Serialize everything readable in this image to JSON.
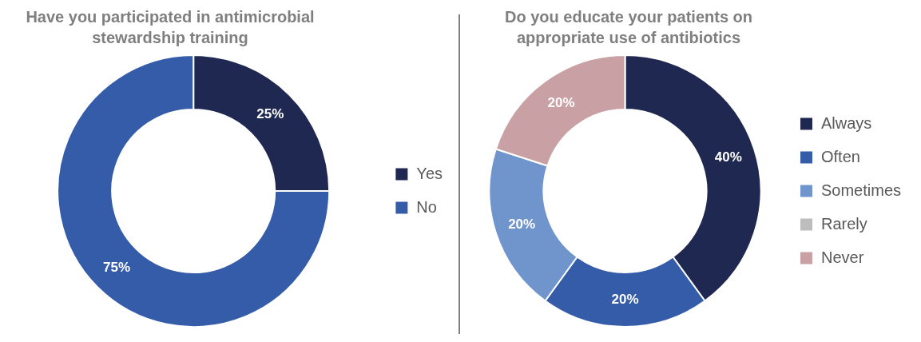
{
  "chart_data": [
    {
      "type": "donut",
      "title": "Have you participated in antimicrobial stewardship training",
      "categories": [
        "Yes",
        "No"
      ],
      "values": [
        25,
        75
      ],
      "colors": [
        "#1f2850",
        "#345ca8"
      ],
      "value_labels": [
        "25%",
        "75%"
      ],
      "legend": "right"
    },
    {
      "type": "donut",
      "title": "Do you educate your patients on appropriate use of antibiotics",
      "categories": [
        "Always",
        "Often",
        "Sometimes",
        "Rarely",
        "Never"
      ],
      "values": [
        40,
        20,
        20,
        0,
        20
      ],
      "colors": [
        "#1f2850",
        "#345ca8",
        "#7094cc",
        "#bdbdbd",
        "#c9a0a3"
      ],
      "value_labels": [
        "40%",
        "20%",
        "20%",
        null,
        "20%"
      ],
      "legend": "right"
    }
  ]
}
